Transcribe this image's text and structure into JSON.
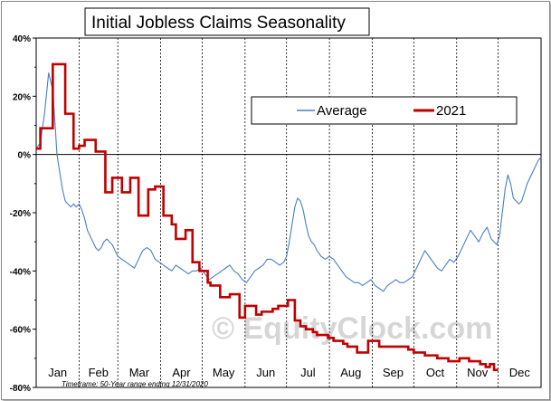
{
  "chart_data": {
    "type": "line",
    "title": "Initial Jobless Claims Seasonality",
    "xlabel": "",
    "ylabel": "",
    "ylim": [
      -80,
      40
    ],
    "y_ticks": [
      40,
      20,
      0,
      -20,
      -40,
      -60,
      -80
    ],
    "y_tick_labels": [
      "40%",
      "20%",
      "0%",
      "-20%",
      "-40%",
      "-60%",
      "-80%"
    ],
    "x_range": [
      0,
      365
    ],
    "month_labels": [
      "Jan",
      "Feb",
      "Mar",
      "Apr",
      "May",
      "Jun",
      "Jul",
      "Aug",
      "Sep",
      "Oct",
      "Nov",
      "Dec"
    ],
    "month_starts": [
      0,
      31,
      59,
      90,
      120,
      151,
      181,
      212,
      243,
      273,
      304,
      334
    ],
    "grid": "vertical dashed at month boundaries; horizontal zero line",
    "legend_position": "top-right",
    "series": [
      {
        "name": "Average",
        "color": "#4a7fc1",
        "style": "line",
        "x": [
          0,
          3,
          6,
          9,
          12,
          14,
          15,
          17,
          19,
          21,
          23,
          25,
          27,
          29,
          31,
          33,
          35,
          37,
          39,
          41,
          43,
          45,
          47,
          49,
          51,
          53,
          55,
          57,
          59,
          62,
          65,
          68,
          71,
          74,
          77,
          80,
          83,
          86,
          89,
          92,
          95,
          98,
          101,
          104,
          107,
          110,
          113,
          116,
          119,
          122,
          125,
          128,
          131,
          134,
          137,
          140,
          143,
          146,
          149,
          152,
          155,
          158,
          161,
          164,
          167,
          170,
          173,
          176,
          179,
          181,
          183,
          185,
          187,
          189,
          191,
          193,
          195,
          197,
          199,
          201,
          203,
          206,
          209,
          212,
          215,
          218,
          221,
          224,
          227,
          230,
          233,
          236,
          239,
          242,
          245,
          248,
          251,
          254,
          257,
          260,
          263,
          266,
          269,
          272,
          275,
          278,
          281,
          284,
          287,
          290,
          293,
          296,
          299,
          302,
          305,
          308,
          311,
          314,
          317,
          320,
          323,
          326,
          329,
          331,
          333,
          335,
          337,
          339,
          341,
          343,
          345,
          347,
          349,
          351,
          353,
          355,
          357,
          359,
          361,
          363,
          365
        ],
        "y": [
          2,
          4,
          14,
          28,
          22,
          8,
          0,
          -6,
          -12,
          -16,
          -17,
          -18,
          -17,
          -18,
          -17,
          -19,
          -22,
          -26,
          -28,
          -30,
          -32,
          -33,
          -32,
          -30,
          -29,
          -30,
          -31,
          -33,
          -35,
          -36,
          -37,
          -38,
          -39,
          -36,
          -33,
          -32,
          -33,
          -36,
          -37,
          -38,
          -39,
          -40,
          -38,
          -39,
          -40,
          -41,
          -40,
          -40,
          -39,
          -41,
          -43,
          -42,
          -41,
          -40,
          -39,
          -38,
          -40,
          -41,
          -43,
          -44,
          -42,
          -40,
          -39,
          -38,
          -36,
          -36,
          -37,
          -38,
          -37,
          -35,
          -30,
          -24,
          -18,
          -15,
          -16,
          -19,
          -24,
          -28,
          -30,
          -31,
          -33,
          -35,
          -36,
          -35,
          -36,
          -38,
          -40,
          -42,
          -43,
          -44,
          -44,
          -45,
          -44,
          -43,
          -45,
          -46,
          -47,
          -45,
          -44,
          -43,
          -44,
          -44,
          -43,
          -42,
          -39,
          -36,
          -33,
          -35,
          -37,
          -39,
          -40,
          -38,
          -36,
          -37,
          -35,
          -32,
          -29,
          -26,
          -28,
          -30,
          -27,
          -25,
          -29,
          -30,
          -31,
          -28,
          -20,
          -12,
          -7,
          -10,
          -15,
          -16,
          -17,
          -16,
          -13,
          -10,
          -8,
          -6,
          -4,
          -2,
          -1
        ]
      },
      {
        "name": "2021",
        "color": "#c00000",
        "style": "step",
        "x": [
          0,
          3,
          8,
          12,
          17,
          21,
          23,
          27,
          31,
          35,
          40,
          43,
          50,
          55,
          57,
          62,
          64,
          68,
          71,
          74,
          78,
          81,
          84,
          86,
          88,
          92,
          98,
          101,
          104,
          108,
          113,
          118,
          124,
          126,
          130,
          133,
          135,
          140,
          144,
          147,
          151,
          155,
          159,
          163,
          167,
          171,
          175,
          178,
          182,
          187,
          191,
          195,
          200,
          203,
          206,
          211,
          215,
          218,
          222,
          225,
          229,
          232,
          236,
          240,
          245,
          248,
          252,
          256,
          260,
          265,
          269,
          273,
          277,
          281,
          286,
          290,
          293,
          298,
          302,
          306,
          309,
          313,
          317,
          321,
          325,
          328,
          331,
          334
        ],
        "y": [
          2,
          9,
          9,
          31,
          31,
          14,
          14,
          2,
          3,
          5,
          5,
          1,
          -13,
          -8,
          -8,
          -13,
          -13,
          -8,
          -8,
          -21,
          -21,
          -12,
          -12,
          -11,
          -11,
          -21,
          -24,
          -29,
          -29,
          -26,
          -37,
          -40,
          -44,
          -45,
          -45,
          -49,
          -49,
          -48,
          -48,
          -56,
          -52,
          -52,
          -55,
          -54,
          -54,
          -53,
          -52,
          -52,
          -50,
          -57,
          -59,
          -60,
          -61,
          -62,
          -62,
          -63,
          -64,
          -64,
          -65,
          -66,
          -66,
          -68,
          -68,
          -64,
          -64,
          -66,
          -66,
          -66,
          -66,
          -66,
          -67,
          -68,
          -68,
          -69,
          -69,
          -70,
          -70,
          -71,
          -71,
          -70,
          -70,
          -71,
          -71,
          -72,
          -73,
          -72,
          -74,
          -74
        ]
      }
    ]
  },
  "legend": {
    "average_label": "Average",
    "year_label": "2021"
  },
  "footnote": "Timeframe: 50-Year range ending 12/31/2020",
  "watermark": "© EquityClock.com"
}
